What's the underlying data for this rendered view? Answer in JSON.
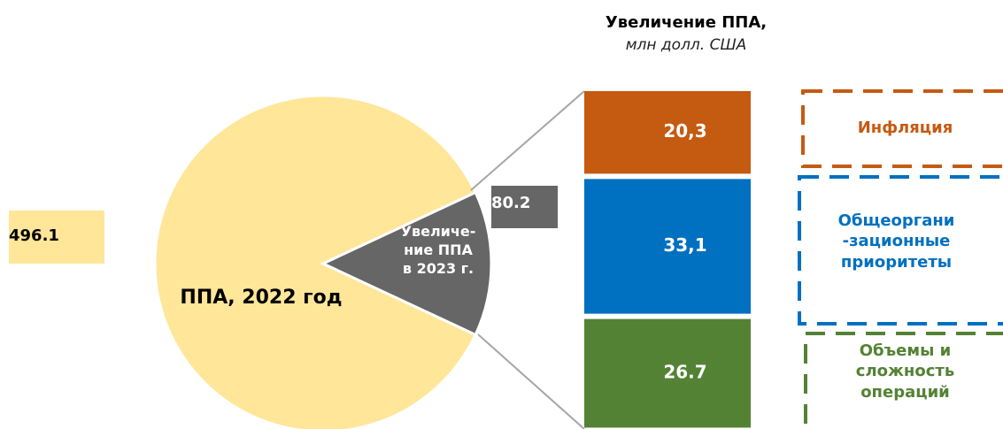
{
  "chart_data": {
    "type": "pie",
    "title": "Увеличение ППА,",
    "subtitle": "млн долл. США",
    "categories": [
      "ППА, 2022 год",
      "Увеличе-\nние ППА\nв 2023 г."
    ],
    "values": [
      496.1,
      80.2
    ],
    "colors": [
      "#ffe699",
      "#666666"
    ],
    "breakdown": {
      "type": "bar",
      "categories": [
        "Инфляция",
        "Общеоргани\n-зационные\nприоритеты",
        "Объемы и\nсложность\nопераций"
      ],
      "values": [
        20.3,
        33.1,
        26.7
      ],
      "value_labels": [
        "20,3",
        "33,1",
        "26.7"
      ],
      "colors": [
        "#c55a11",
        "#0070c0",
        "#548235"
      ]
    }
  }
}
